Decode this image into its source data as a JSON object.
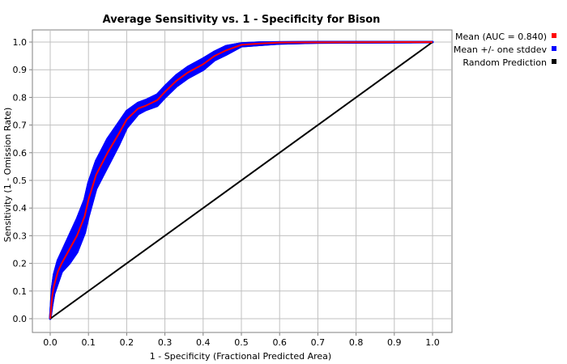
{
  "chart_data": {
    "type": "line",
    "title": "Average Sensitivity vs. 1 - Specificity for Bison",
    "xlabel": "1 - Specificity (Fractional Predicted Area)",
    "ylabel": "Sensitivity (1 - Omission Rate)",
    "xlim": [
      0.0,
      1.0
    ],
    "ylim": [
      0.0,
      1.0
    ],
    "xticks": [
      "0.0",
      "0.1",
      "0.2",
      "0.3",
      "0.4",
      "0.5",
      "0.6",
      "0.7",
      "0.8",
      "0.9",
      "1.0"
    ],
    "yticks": [
      "0.0",
      "0.1",
      "0.2",
      "0.3",
      "0.4",
      "0.5",
      "0.6",
      "0.7",
      "0.8",
      "0.9",
      "1.0"
    ],
    "grid": true,
    "legend_position": "right",
    "series": [
      {
        "name": "Mean (AUC = 0.840)",
        "color": "#ff0000",
        "x": [
          0.0,
          0.005,
          0.01,
          0.02,
          0.03,
          0.05,
          0.07,
          0.09,
          0.1,
          0.12,
          0.15,
          0.18,
          0.2,
          0.23,
          0.25,
          0.28,
          0.3,
          0.33,
          0.36,
          0.4,
          0.43,
          0.46,
          0.5,
          0.55,
          0.6,
          0.7,
          1.0
        ],
        "y": [
          0.0,
          0.08,
          0.12,
          0.17,
          0.2,
          0.25,
          0.3,
          0.37,
          0.43,
          0.52,
          0.6,
          0.67,
          0.72,
          0.76,
          0.77,
          0.79,
          0.82,
          0.86,
          0.89,
          0.92,
          0.95,
          0.97,
          0.99,
          0.995,
          0.998,
          0.999,
          1.0
        ]
      },
      {
        "name": "Mean +/- one stddev",
        "color": "#0000ff",
        "upper": [
          0.0,
          0.11,
          0.16,
          0.21,
          0.24,
          0.3,
          0.36,
          0.43,
          0.49,
          0.57,
          0.65,
          0.71,
          0.75,
          0.78,
          0.79,
          0.81,
          0.84,
          0.88,
          0.91,
          0.94,
          0.965,
          0.985,
          0.995,
          0.998,
          0.999,
          1.0,
          1.0
        ],
        "lower": [
          0.0,
          0.05,
          0.09,
          0.13,
          0.17,
          0.2,
          0.24,
          0.31,
          0.37,
          0.47,
          0.55,
          0.63,
          0.69,
          0.74,
          0.755,
          0.77,
          0.8,
          0.84,
          0.87,
          0.9,
          0.935,
          0.955,
          0.985,
          0.99,
          0.995,
          0.998,
          1.0
        ]
      },
      {
        "name": "Random Prediction",
        "color": "#000000",
        "x": [
          0.0,
          1.0
        ],
        "y": [
          0.0,
          1.0
        ]
      }
    ]
  }
}
